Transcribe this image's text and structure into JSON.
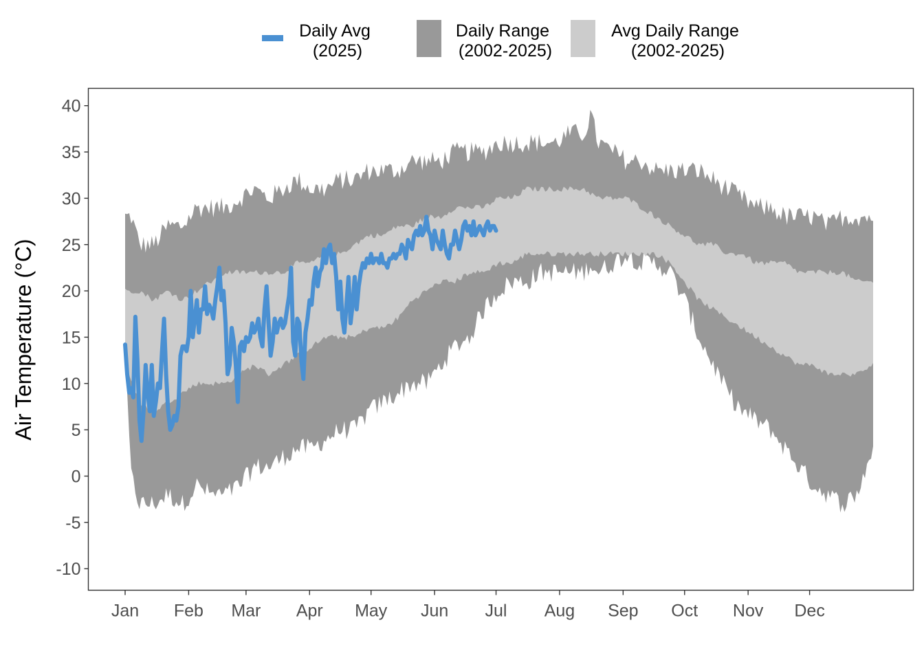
{
  "chart_data": {
    "type": "area",
    "title": "",
    "xlabel": "",
    "ylabel": "Air Temperature (°C)",
    "x_ticks": [
      "Jan",
      "Feb",
      "Mar",
      "Apr",
      "May",
      "Jun",
      "Jul",
      "Aug",
      "Sep",
      "Oct",
      "Nov",
      "Dec"
    ],
    "x_tick_day_of_year": [
      1,
      32,
      60,
      91,
      121,
      152,
      182,
      213,
      244,
      274,
      305,
      335
    ],
    "y_ticks": [
      "40",
      "35",
      "30",
      "25",
      "20",
      "15",
      "10",
      "5",
      "0",
      "-5",
      "-10"
    ],
    "y_tick_values": [
      40,
      35,
      30,
      25,
      20,
      15,
      10,
      5,
      0,
      -5,
      -10
    ],
    "xlim": [
      1,
      366
    ],
    "ylim": [
      -12.3,
      41.8
    ],
    "grid": false,
    "legend_position": "top",
    "legend": [
      {
        "label_line1": "Daily Avg",
        "label_line2": "(2025)",
        "kind": "line",
        "color": "#4a90d2"
      },
      {
        "label_line1": "Daily Range",
        "label_line2": "(2002-2025)",
        "kind": "fill",
        "color": "#999999"
      },
      {
        "label_line1": "Avg Daily Range",
        "label_line2": "(2002-2025)",
        "kind": "fill",
        "color": "#cccccc"
      }
    ],
    "series": [
      {
        "name": "Daily Range (2002-2025)",
        "kind": "band",
        "color": "#999999",
        "day": [
          1,
          4,
          8,
          15,
          22,
          29,
          36,
          43,
          50,
          57,
          64,
          71,
          78,
          85,
          92,
          99,
          106,
          113,
          120,
          127,
          134,
          141,
          148,
          155,
          162,
          169,
          176,
          183,
          190,
          197,
          204,
          211,
          218,
          225,
          228,
          232,
          239,
          246,
          253,
          260,
          267,
          274,
          281,
          288,
          295,
          302,
          309,
          316,
          323,
          330,
          337,
          344,
          351,
          358,
          366
        ],
        "low": [
          12,
          0,
          -3,
          -3,
          -2,
          -3,
          -1,
          -2,
          -2,
          -1,
          1,
          1,
          2,
          3,
          3,
          4,
          5,
          5,
          7,
          8,
          9,
          10,
          10,
          12,
          14,
          15,
          18,
          20,
          21,
          21,
          22,
          22,
          22,
          22,
          23,
          22,
          23,
          24,
          23,
          23,
          22,
          19,
          15,
          12,
          9,
          7,
          6,
          5,
          3,
          1,
          -1,
          -2,
          -3,
          -2,
          3
        ],
        "high": [
          28,
          28,
          25,
          25,
          27,
          27,
          29,
          29,
          29,
          30,
          31,
          30,
          31,
          32,
          31,
          31,
          32,
          32,
          33,
          33,
          33,
          34,
          34,
          34,
          35,
          35,
          35,
          36,
          36,
          36,
          36,
          36,
          37,
          37,
          39,
          36,
          35,
          34,
          34,
          33,
          33,
          33,
          33,
          32,
          31,
          30,
          29,
          29,
          28,
          28,
          28,
          27,
          28,
          28,
          28
        ]
      },
      {
        "name": "Avg Daily Range (2002-2025)",
        "kind": "band",
        "color": "#cccccc",
        "day": [
          1,
          8,
          15,
          22,
          29,
          36,
          43,
          50,
          57,
          64,
          71,
          78,
          85,
          92,
          99,
          106,
          113,
          120,
          127,
          134,
          141,
          148,
          155,
          162,
          169,
          176,
          183,
          190,
          197,
          204,
          211,
          218,
          225,
          232,
          239,
          246,
          253,
          260,
          267,
          274,
          281,
          288,
          295,
          302,
          309,
          316,
          323,
          330,
          337,
          344,
          351,
          358,
          366
        ],
        "low": [
          12,
          8,
          7,
          8,
          9,
          10,
          10,
          10,
          11,
          12,
          11,
          12,
          13,
          14,
          15,
          15,
          15,
          16,
          16,
          17,
          19,
          20,
          21,
          21,
          22,
          22,
          23,
          23,
          24,
          24,
          24,
          24,
          24,
          24,
          24,
          24,
          24,
          24,
          23,
          21,
          19,
          18,
          17,
          16,
          15,
          14,
          13,
          12,
          12,
          11,
          11,
          11,
          12
        ],
        "high": [
          20,
          20,
          19,
          20,
          19,
          20,
          21,
          22,
          22,
          22,
          22,
          22,
          23,
          23,
          24,
          24,
          25,
          26,
          26,
          27,
          27,
          28,
          28,
          29,
          29,
          29,
          30,
          30,
          31,
          31,
          31,
          31,
          31,
          30,
          30,
          30,
          29,
          28,
          27,
          26,
          25,
          25,
          24,
          24,
          23,
          23,
          23,
          22,
          22,
          22,
          22,
          21,
          21
        ]
      },
      {
        "name": "Daily Avg (2025)",
        "kind": "line",
        "color": "#4a90d2",
        "day": [
          1,
          2,
          3,
          4,
          5,
          6,
          7,
          8,
          9,
          10,
          11,
          12,
          13,
          14,
          15,
          16,
          17,
          18,
          19,
          20,
          21,
          22,
          23,
          24,
          25,
          26,
          27,
          28,
          29,
          30,
          31,
          32,
          33,
          34,
          35,
          36,
          37,
          38,
          39,
          40,
          41,
          42,
          43,
          44,
          45,
          46,
          47,
          48,
          49,
          50,
          51,
          52,
          53,
          54,
          55,
          56,
          57,
          58,
          59,
          60,
          61,
          62,
          63,
          64,
          65,
          66,
          67,
          68,
          69,
          70,
          71,
          72,
          73,
          74,
          75,
          76,
          77,
          78,
          79,
          80,
          81,
          82,
          83,
          84,
          85,
          86,
          87,
          88,
          89,
          90,
          91,
          92,
          93,
          94,
          95,
          96,
          97,
          98,
          99,
          100,
          101,
          102,
          103,
          104,
          105,
          106,
          107,
          108,
          109,
          110,
          111,
          112,
          113,
          114,
          115,
          116,
          117,
          118,
          119,
          120,
          121,
          122,
          123,
          124,
          125,
          126,
          127,
          128,
          129,
          130,
          131,
          132,
          133,
          134,
          135,
          136,
          137,
          138,
          139,
          140,
          141,
          142,
          143,
          144,
          145,
          146,
          147,
          148,
          149,
          150,
          151,
          152,
          153,
          154,
          155,
          156,
          157,
          158,
          159,
          160,
          161,
          162,
          163,
          164,
          165,
          166,
          167,
          168,
          169,
          170,
          171,
          172,
          173,
          174,
          175,
          176,
          177,
          178,
          179,
          180,
          181,
          182
        ],
        "values": [
          14.2,
          11,
          9,
          9.5,
          8.5,
          17.2,
          12.5,
          6,
          3.8,
          7,
          12,
          9,
          7,
          12,
          6.5,
          8,
          10,
          9.5,
          13.5,
          17,
          11,
          7,
          5,
          5.5,
          6.5,
          6,
          7.5,
          13,
          14,
          14,
          13.5,
          15,
          20,
          15,
          17,
          19,
          15.5,
          18,
          18,
          20.5,
          17.5,
          18.5,
          18,
          17,
          19,
          20.5,
          22.5,
          19,
          20,
          16.5,
          11,
          12,
          16,
          14.5,
          12,
          8,
          14,
          14.5,
          13.5,
          15,
          14.5,
          15,
          16.5,
          15.5,
          16,
          17,
          15,
          14,
          18,
          20.5,
          16.5,
          13,
          14.5,
          17,
          15.5,
          16.5,
          17,
          16,
          16.5,
          18,
          19.5,
          22.5,
          14.5,
          13,
          17,
          16.5,
          12.5,
          10.5,
          15.5,
          17,
          19,
          18.5,
          21,
          22.5,
          20.5,
          22,
          22.5,
          24.5,
          23,
          24.5,
          25,
          23,
          24,
          21.5,
          18,
          21,
          17,
          15.5,
          18.5,
          21.5,
          16.5,
          18.5,
          21.5,
          18,
          20.5,
          22,
          23,
          22.5,
          23.5,
          23,
          24,
          23,
          23.5,
          23.5,
          23,
          24,
          23,
          23,
          22.5,
          23.5,
          23.5,
          24,
          23.5,
          24,
          24,
          25,
          24.5,
          23.5,
          25.5,
          25,
          24.5,
          26,
          26.5,
          26,
          27,
          26,
          26.5,
          28,
          26.5,
          26,
          24.5,
          26.5,
          25.5,
          25,
          24.5,
          26.5,
          25,
          24,
          23.5,
          25,
          25,
          26.5,
          25.5,
          24.5,
          25.5,
          27,
          27.5,
          26.5,
          27,
          26,
          27.5,
          26,
          26.5,
          27,
          26.5,
          26,
          27,
          27.5,
          26.5,
          27,
          27,
          26.5,
          26.5,
          26.5,
          26,
          25,
          24.5,
          25
        ]
      }
    ]
  }
}
